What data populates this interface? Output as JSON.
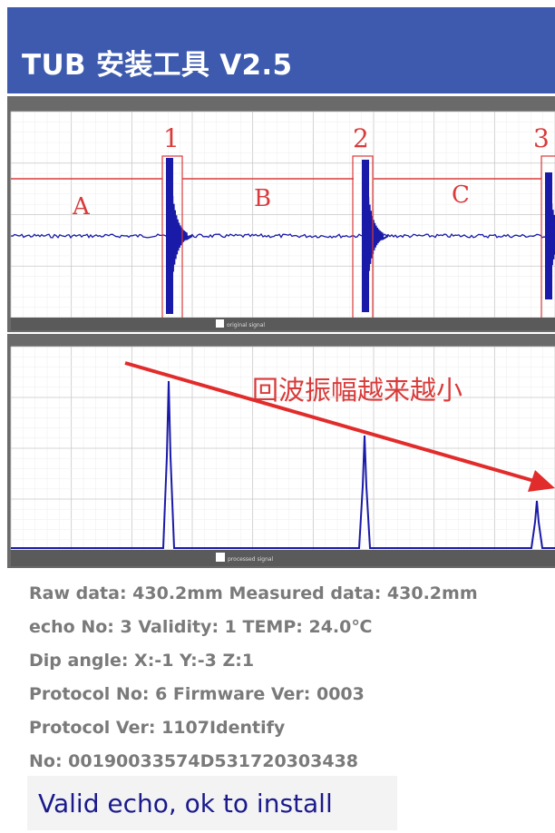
{
  "app": {
    "title": "TUB 安装工具 V2.5"
  },
  "colors": {
    "header": "#3d5aae",
    "signal": "#1a1aa8",
    "marker": "#d93a3a",
    "arrow": "#e22b2b",
    "panel_frame": "#6a6a6a",
    "info_text": "#7a7a7a",
    "status_text": "#1a1a8c"
  },
  "raw_signal_chart": {
    "type": "line",
    "echo_markers": [
      "1",
      "2",
      "3"
    ],
    "segment_labels": [
      "A",
      "B",
      "C"
    ],
    "footer": "original signal"
  },
  "processed_signal_chart": {
    "type": "line",
    "annotation": "回波振幅越来越小",
    "footer": "processed signal"
  },
  "chart_data": [
    {
      "type": "line",
      "title": "",
      "xlabel": "",
      "ylabel": "",
      "grid": true,
      "echo_markers": [
        "1",
        "2",
        "3"
      ],
      "segment_labels": [
        "A",
        "B",
        "C"
      ],
      "echo_positions": [
        0.29,
        0.65,
        1.0
      ],
      "series": [
        {
          "values": [
            0,
            0,
            1,
            0,
            0,
            0.9,
            0,
            0,
            0.8
          ]
        }
      ]
    },
    {
      "type": "line",
      "title": "",
      "xlabel": "",
      "ylabel": "",
      "grid": true,
      "annotation": "回波振幅越来越小",
      "echo_positions": [
        0.29,
        0.65,
        0.98
      ],
      "series": [
        {
          "values": [
            0,
            0.92,
            0,
            0.62,
            0,
            0.26,
            0
          ]
        }
      ]
    }
  ],
  "info": {
    "line1": "Raw data: 430.2mm  Measured data: 430.2mm",
    "line2": "echo No: 3   Validity: 1  TEMP: 24.0℃",
    "line3": "Dip angle: X:-1 Y:-3 Z:1",
    "line4": "Protocol No: 6  Firmware Ver: 0003",
    "line5": "Protocol Ver: 1107Identify",
    "line6": "No: 00190033574D531720303438"
  },
  "status": {
    "message": "Valid echo, ok to install"
  }
}
